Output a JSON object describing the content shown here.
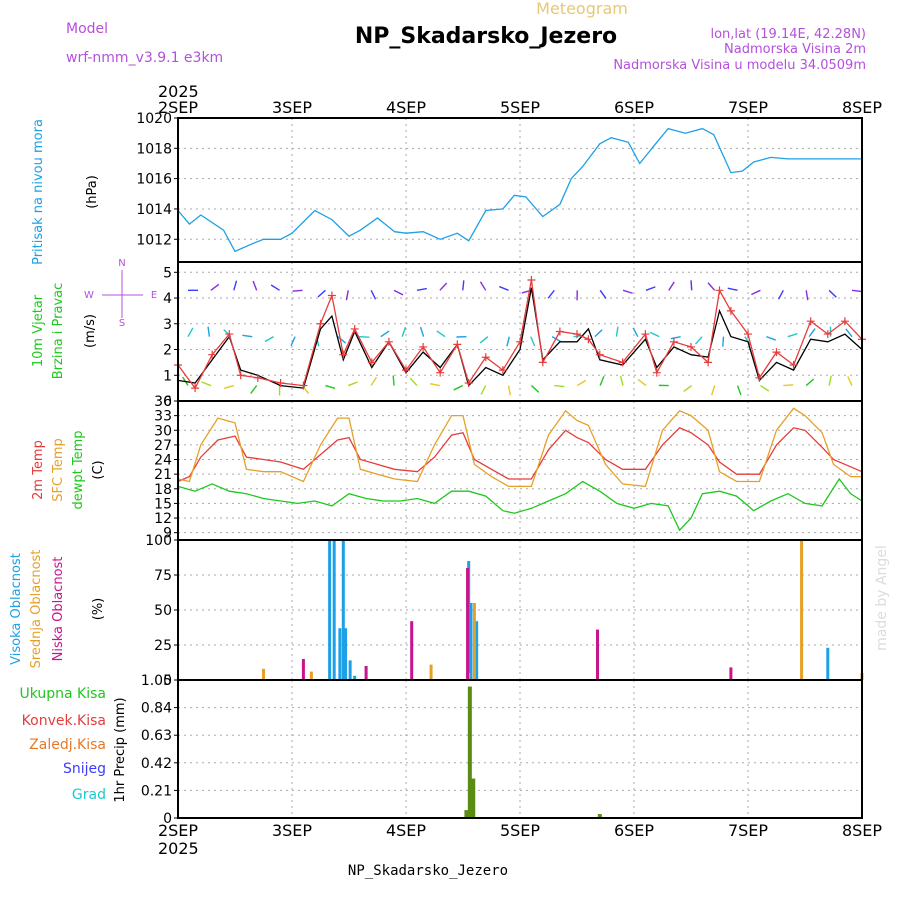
{
  "header": {
    "model_label": "Model",
    "model_name": "wrf-nmm_v3.9.1 e3km",
    "product": "Meteogram",
    "station": "NP_Skadarsko_Jezero",
    "lonlat": "lon,lat (19.14E, 42.28N)",
    "elevation": "Nadmorska Visina 2m",
    "model_elevation": "Nadmorska Visina u modelu 34.0509m"
  },
  "footer": {
    "station": "NP_Skadarsko_Jezero",
    "credit": "made by Angel"
  },
  "colors": {
    "pressure": "#1ea0e6",
    "temp2m": "#e63c3c",
    "sfc": "#e6a028",
    "dewpt": "#1ec81e",
    "high_cloud": "#1ea0e6",
    "mid_cloud": "#e6a028",
    "low_cloud": "#c8148c",
    "precip": "#5a8c14",
    "wind_speed": "#000000",
    "grid": "#aaaaaa"
  },
  "chart_data": {
    "type": "meteogram",
    "x_year": "2025",
    "x_ticks": [
      "2SEP",
      "3SEP",
      "4SEP",
      "5SEP",
      "6SEP",
      "7SEP",
      "8SEP"
    ],
    "x_range_days": [
      0,
      6
    ],
    "panels": [
      {
        "id": "pressure",
        "type": "line",
        "title": "Pritisak na nivou mora",
        "unit": "(hPa)",
        "ylim": [
          1010.5,
          1020
        ],
        "yticks": [
          1012,
          1014,
          1016,
          1018,
          1020
        ],
        "series": [
          {
            "name": "Pritisak na nivou mora",
            "color": "#1ea0e6",
            "x": [
              0,
              0.1,
              0.2,
              0.4,
              0.5,
              0.65,
              0.75,
              0.9,
              1.0,
              1.2,
              1.35,
              1.5,
              1.6,
              1.75,
              1.9,
              2.0,
              2.15,
              2.3,
              2.45,
              2.55,
              2.7,
              2.85,
              2.95,
              3.05,
              3.2,
              3.35,
              3.45,
              3.55,
              3.7,
              3.8,
              3.95,
              4.05,
              4.2,
              4.3,
              4.45,
              4.6,
              4.7,
              4.85,
              4.95,
              5.05,
              5.2,
              5.35,
              5.45,
              5.55,
              5.65,
              5.75,
              5.85,
              6.0
            ],
            "y": [
              1013.9,
              1013.0,
              1013.6,
              1012.6,
              1011.2,
              1011.7,
              1012.0,
              1012.0,
              1012.4,
              1013.9,
              1013.3,
              1012.2,
              1012.6,
              1013.4,
              1012.5,
              1012.4,
              1012.5,
              1012.0,
              1012.4,
              1011.9,
              1013.9,
              1014.0,
              1014.9,
              1014.8,
              1013.5,
              1014.3,
              1016.0,
              1016.8,
              1018.3,
              1018.7,
              1018.4,
              1017.0,
              1018.4,
              1019.3,
              1019.0,
              1019.3,
              1018.9,
              1016.4,
              1016.5,
              1017.1,
              1017.4,
              1017.3,
              1017.3,
              1017.3,
              1017.3,
              1017.3,
              1017.3,
              1017.3
            ]
          }
        ]
      },
      {
        "id": "wind",
        "type": "line+vectors",
        "title": "10m Vjetar",
        "title2": "Brzina i Pravac",
        "unit": "(m/s)",
        "compass": {
          "n": "N",
          "s": "S",
          "e": "E",
          "w": "W"
        },
        "ylim": [
          0,
          5.4
        ],
        "yticks": [
          0,
          1,
          2,
          3,
          4,
          5
        ],
        "series": [
          {
            "name": "Brzina 10m",
            "color": "#000000",
            "x": [
              0,
              0.15,
              0.3,
              0.45,
              0.55,
              0.7,
              0.9,
              1.1,
              1.25,
              1.35,
              1.45,
              1.55,
              1.7,
              1.85,
              2.0,
              2.15,
              2.3,
              2.45,
              2.55,
              2.7,
              2.85,
              3.0,
              3.1,
              3.2,
              3.35,
              3.5,
              3.6,
              3.7,
              3.9,
              4.1,
              4.2,
              4.35,
              4.5,
              4.65,
              4.75,
              4.85,
              5.0,
              5.1,
              5.25,
              5.4,
              5.55,
              5.7,
              5.85,
              6.0
            ],
            "y": [
              0.8,
              0.7,
              1.6,
              2.5,
              1.2,
              1.0,
              0.6,
              0.5,
              2.8,
              3.3,
              1.6,
              2.7,
              1.3,
              2.3,
              1.1,
              1.9,
              1.3,
              2.2,
              0.6,
              1.3,
              1.0,
              2.0,
              4.4,
              1.6,
              2.3,
              2.3,
              2.8,
              1.6,
              1.4,
              2.4,
              1.3,
              2.1,
              1.8,
              1.7,
              3.5,
              2.5,
              2.3,
              0.8,
              1.5,
              1.2,
              2.4,
              2.3,
              2.6,
              2.0
            ]
          },
          {
            "name": "Udari",
            "color": "#e63c3c",
            "marker": "+",
            "x": [
              0,
              0.15,
              0.3,
              0.45,
              0.55,
              0.7,
              0.9,
              1.1,
              1.25,
              1.35,
              1.45,
              1.55,
              1.7,
              1.85,
              2.0,
              2.15,
              2.3,
              2.45,
              2.55,
              2.7,
              2.85,
              3.0,
              3.1,
              3.2,
              3.35,
              3.5,
              3.6,
              3.7,
              3.9,
              4.1,
              4.2,
              4.35,
              4.5,
              4.65,
              4.75,
              4.85,
              5.0,
              5.1,
              5.25,
              5.4,
              5.55,
              5.7,
              5.85,
              6.0
            ],
            "y": [
              1.4,
              0.5,
              1.8,
              2.6,
              1.0,
              0.9,
              0.7,
              0.6,
              3.0,
              4.1,
              1.8,
              2.8,
              1.5,
              2.3,
              1.2,
              2.1,
              1.1,
              2.2,
              0.7,
              1.7,
              1.2,
              2.3,
              4.7,
              1.5,
              2.7,
              2.6,
              2.4,
              1.8,
              1.5,
              2.6,
              1.1,
              2.3,
              2.1,
              1.5,
              4.3,
              3.5,
              2.6,
              0.9,
              1.9,
              1.4,
              3.1,
              2.6,
              3.1,
              2.4
            ]
          }
        ],
        "vector_rows": [
          {
            "y": 4.3,
            "arrows": 30,
            "colors": [
              "#3c3cff",
              "#8a2be2"
            ]
          },
          {
            "y": 2.5,
            "arrows": 32,
            "colors": [
              "#1ec8c8",
              "#1ea0e6"
            ]
          },
          {
            "y": 0.6,
            "arrows": 30,
            "colors": [
              "#1ec81e",
              "#a0dc1e",
              "#e6c81e"
            ]
          }
        ]
      },
      {
        "id": "temp",
        "type": "line",
        "title": "2m Temp",
        "title2": "SFC Temp",
        "title3": "dewpt Temp",
        "unit": "(C)",
        "ylim": [
          7.5,
          36
        ],
        "yticks": [
          9,
          12,
          15,
          18,
          21,
          24,
          27,
          30,
          33,
          36
        ],
        "series": [
          {
            "name": "2m Temp",
            "color": "#e63c3c",
            "x": [
              0,
              0.1,
              0.2,
              0.35,
              0.5,
              0.6,
              0.75,
              0.9,
              1.1,
              1.25,
              1.4,
              1.5,
              1.6,
              1.75,
              1.9,
              2.1,
              2.25,
              2.4,
              2.5,
              2.6,
              2.75,
              2.9,
              3.1,
              3.25,
              3.4,
              3.5,
              3.6,
              3.75,
              3.9,
              4.1,
              4.25,
              4.4,
              4.5,
              4.65,
              4.75,
              4.9,
              5.1,
              5.25,
              5.4,
              5.5,
              5.65,
              5.75,
              5.9,
              6.0
            ],
            "y": [
              19.5,
              20.5,
              24.5,
              28.0,
              28.8,
              24.5,
              24.0,
              23.5,
              22.0,
              25.0,
              28.0,
              28.5,
              24.0,
              23.0,
              22.0,
              21.5,
              24.5,
              29.0,
              29.5,
              24.0,
              22.0,
              20.0,
              20.0,
              26.0,
              30.0,
              28.5,
              27.5,
              24.0,
              22.0,
              22.0,
              27.0,
              30.5,
              29.5,
              27.0,
              23.5,
              21.0,
              21.0,
              27.0,
              30.5,
              30.0,
              26.5,
              24.0,
              22.5,
              21.5
            ]
          },
          {
            "name": "SFC Temp",
            "color": "#e6a028",
            "x": [
              0,
              0.1,
              0.2,
              0.35,
              0.5,
              0.6,
              0.75,
              0.9,
              1.1,
              1.25,
              1.4,
              1.5,
              1.6,
              1.75,
              1.9,
              2.1,
              2.25,
              2.4,
              2.5,
              2.6,
              2.75,
              2.9,
              3.1,
              3.25,
              3.4,
              3.5,
              3.6,
              3.75,
              3.9,
              4.1,
              4.25,
              4.4,
              4.5,
              4.65,
              4.75,
              4.9,
              5.1,
              5.25,
              5.4,
              5.5,
              5.65,
              5.75,
              5.9,
              6.0
            ],
            "y": [
              20.0,
              19.5,
              27.0,
              32.5,
              31.5,
              22.0,
              21.5,
              21.5,
              19.5,
              27.0,
              32.5,
              32.5,
              22.0,
              21.0,
              20.0,
              19.5,
              27.0,
              33.0,
              33.0,
              23.0,
              20.5,
              18.5,
              18.5,
              29.0,
              34.0,
              32.0,
              31.0,
              23.0,
              19.0,
              18.5,
              30.0,
              34.0,
              33.0,
              30.0,
              21.5,
              19.5,
              19.5,
              30.0,
              34.5,
              33.0,
              29.5,
              23.0,
              20.5,
              20.5
            ]
          },
          {
            "name": "dewpt Temp",
            "color": "#1ec81e",
            "x": [
              0,
              0.15,
              0.3,
              0.45,
              0.6,
              0.75,
              0.9,
              1.05,
              1.2,
              1.35,
              1.5,
              1.65,
              1.8,
              1.95,
              2.1,
              2.25,
              2.4,
              2.55,
              2.7,
              2.85,
              2.95,
              3.1,
              3.25,
              3.4,
              3.55,
              3.7,
              3.85,
              4.0,
              4.15,
              4.3,
              4.4,
              4.5,
              4.6,
              4.75,
              4.9,
              5.05,
              5.2,
              5.35,
              5.5,
              5.65,
              5.8,
              5.9,
              6.0
            ],
            "y": [
              18.5,
              17.5,
              19.0,
              17.5,
              17.0,
              16.0,
              15.5,
              15.0,
              15.5,
              14.5,
              17.0,
              16.0,
              15.5,
              15.5,
              16.0,
              15.0,
              17.5,
              17.5,
              16.5,
              13.5,
              13.0,
              14.0,
              15.5,
              17.0,
              19.5,
              17.5,
              15.0,
              14.0,
              15.0,
              14.5,
              9.5,
              12.0,
              17.0,
              17.5,
              16.5,
              13.5,
              15.5,
              17.0,
              15.0,
              14.5,
              20.0,
              17.0,
              15.5
            ]
          }
        ]
      },
      {
        "id": "cloud",
        "type": "bar",
        "title": "Visoka Oblacnost",
        "title2": "Srednja Oblacnost",
        "title3": "Niska Oblacnost",
        "unit": "(%)",
        "ylim": [
          0,
          100
        ],
        "yticks": [
          0,
          25,
          50,
          75,
          100
        ],
        "series": [
          {
            "name": "Visoka Oblacnost",
            "color": "#1ea0e6",
            "x": [
              1.33,
              1.37,
              1.42,
              1.45,
              1.47,
              1.51,
              1.55,
              2.55,
              2.57,
              2.62,
              5.7
            ],
            "y": [
              100,
              100,
              37,
              100,
              37,
              14,
              3,
              85,
              55,
              42,
              23
            ]
          },
          {
            "name": "Srednja Oblacnost",
            "color": "#e6a028",
            "x": [
              0.75,
              1.17,
              2.22,
              2.55,
              2.6,
              5.47,
              6.0
            ],
            "y": [
              8,
              6,
              11,
              5,
              55,
              100,
              5
            ]
          },
          {
            "name": "Niska Oblacnost",
            "color": "#c8148c",
            "x": [
              1.1,
              1.65,
              2.05,
              2.54,
              3.68,
              4.85
            ],
            "y": [
              15,
              10,
              42,
              80,
              36,
              9
            ]
          }
        ]
      },
      {
        "id": "precip",
        "type": "bar",
        "title": "1hr Precip (mm)",
        "legend": [
          "Ukupna Kisa",
          "Konvek.Kisa",
          "Zaledj.Kisa",
          "Snijeg",
          "Grad"
        ],
        "legend_colors": [
          "#1ec81e",
          "#e63c3c",
          "#e67828",
          "#3c3cff",
          "#1ec8c8"
        ],
        "ylim": [
          0,
          1.05
        ],
        "yticks": [
          "0",
          "0.21",
          "0.42",
          "0.63",
          "0.84",
          "1.05"
        ],
        "series": [
          {
            "name": "Ukupna Kisa",
            "color": "#5a8c14",
            "x": [
              2.53,
              2.56,
              2.59,
              3.7
            ],
            "y": [
              0.06,
              1.0,
              0.3,
              0.03
            ]
          }
        ]
      }
    ]
  }
}
